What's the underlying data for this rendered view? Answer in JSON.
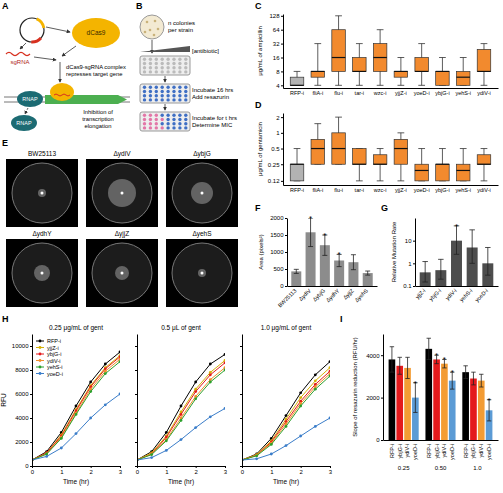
{
  "figure": {
    "panel_letters": [
      "A",
      "B",
      "C",
      "D",
      "E",
      "F",
      "G",
      "H",
      "I"
    ],
    "panel_a": {
      "sgrna": "sgRNA",
      "dcas9": "dCas9",
      "complex": [
        "dCas9-sgRNA complex",
        "represses target gene"
      ],
      "rnap": [
        "RNAP",
        "RNAP"
      ],
      "inhibition": [
        "Inhibition of",
        "transcription",
        "elongation"
      ]
    },
    "panel_b": {
      "colonies": [
        "n colonies",
        "per strain"
      ],
      "antibiotic": "[antibiotic]",
      "step1": [
        "Incubate 16 hrs",
        "Add resazurin"
      ],
      "step2": [
        "Incubate for t hrs",
        "Determine MIC"
      ]
    },
    "panel_e": {
      "strains": [
        "BW25113",
        "ΔydiV",
        "ΔybjG",
        "ΔydhY",
        "ΔyjjZ",
        "ΔyehS"
      ]
    }
  },
  "chart_data": [
    {
      "type": "box",
      "y_label": "μg/mL of ampicillin",
      "categories": [
        "RFP-i",
        "fliA-i",
        "flu-i",
        "tar-i",
        "wzc-i",
        "yjjZ-i",
        "yoeD-i",
        "ybjG-i",
        "yehS-i",
        "ydiV-i"
      ],
      "colors": [
        "#b3b3b3",
        "#f28a2e",
        "#f28a2e",
        "#f28a2e",
        "#f28a2e",
        "#f28a2e",
        "#f28a2e",
        "#f28a2e",
        "#f28a2e",
        "#f28a2e"
      ],
      "min": [
        4,
        4,
        4,
        4,
        4,
        4,
        4,
        4,
        4,
        4
      ],
      "q1": [
        4,
        6,
        8,
        8,
        8,
        6,
        8,
        4,
        4,
        8
      ],
      "median": [
        4,
        8,
        16,
        8,
        16,
        8,
        8,
        8,
        6,
        8
      ],
      "q3": [
        6,
        8,
        64,
        16,
        32,
        8,
        16,
        8,
        8,
        24
      ],
      "max": [
        8,
        32,
        128,
        32,
        64,
        16,
        32,
        16,
        16,
        32
      ],
      "log": "y",
      "ylim": [
        3.5,
        140
      ],
      "yticks": [
        4,
        8,
        16,
        32,
        64,
        128
      ]
    },
    {
      "type": "box",
      "y_label": "μg/mL of gentamicin",
      "categories": [
        "RFP-i",
        "fliA-i",
        "flu-i",
        "tar-i",
        "wzc-i",
        "yjjZ-i",
        "yoeD-i",
        "ybjG-i",
        "yehS-i",
        "ydiV-i"
      ],
      "colors": [
        "#b3b3b3",
        "#f28a2e",
        "#f28a2e",
        "#f28a2e",
        "#f28a2e",
        "#f28a2e",
        "#f28a2e",
        "#f28a2e",
        "#f28a2e",
        "#f28a2e"
      ],
      "min": [
        0.12,
        0.25,
        0.25,
        0.12,
        0.12,
        0.12,
        0.12,
        0.12,
        0.12,
        0.12
      ],
      "q1": [
        0.12,
        0.25,
        0.25,
        0.25,
        0.25,
        0.25,
        0.12,
        0.12,
        0.12,
        0.25
      ],
      "median": [
        0.25,
        0.5,
        0.5,
        0.25,
        0.25,
        0.5,
        0.19,
        0.25,
        0.19,
        0.25
      ],
      "q3": [
        0.25,
        0.75,
        1,
        0.5,
        0.38,
        0.75,
        0.25,
        0.25,
        0.25,
        0.38
      ],
      "max": [
        0.5,
        1.5,
        2,
        0.5,
        0.5,
        1,
        0.5,
        0.5,
        0.5,
        0.5
      ],
      "log": "y",
      "ylim": [
        0.1,
        2.4
      ],
      "yticks": [
        0.12,
        0.25,
        0.5,
        1,
        2
      ]
    },
    {
      "type": "bar",
      "y_label": "Area (pixels²)",
      "categories": [
        "BW25113",
        "ΔydiV",
        "ΔybjG",
        "ΔydhY",
        "ΔyjjZ",
        "ΔyehS"
      ],
      "values": [
        430,
        1580,
        1200,
        750,
        700,
        380
      ],
      "errors": [
        60,
        420,
        300,
        180,
        220,
        60
      ],
      "color": "#8c8c8c",
      "ylim": [
        0,
        2000
      ],
      "yticks": [
        0,
        500,
        1000,
        1500,
        2000
      ],
      "annotations": [
        {
          "category": 1,
          "text": "*"
        },
        {
          "category": 2,
          "text": "*"
        },
        {
          "category": 3,
          "text": "*"
        }
      ]
    },
    {
      "type": "bar",
      "y_label": "Relative Mutation Rate",
      "log": "y",
      "categories": [
        "yjjZ-i",
        "ybjG-i",
        "ydiV-i",
        "yehS-i",
        "yoeD-i"
      ],
      "values": [
        0.4,
        0.5,
        10,
        5,
        1
      ],
      "ci_low": [
        0.15,
        0.2,
        2.5,
        1,
        0.3
      ],
      "ci_high": [
        1.2,
        1.5,
        45,
        30,
        5
      ],
      "color": "#4d4d4d",
      "ylim": [
        0.1,
        100
      ],
      "yticks": [
        0.1,
        1,
        10
      ],
      "annotations": [
        {
          "category": 2,
          "text": "*"
        }
      ]
    },
    {
      "type": "line",
      "title": "0.25 μg/mL of gent",
      "x_label": "Time (hr)",
      "y_label": "RFU",
      "x": [
        0,
        0.5,
        1,
        1.5,
        2,
        2.5,
        3
      ],
      "xlim": [
        0,
        3
      ],
      "xticks": [
        0,
        1,
        2,
        3
      ],
      "ylim": [
        0,
        11000
      ],
      "yticks": [
        0,
        2000,
        4000,
        6000,
        8000,
        10000
      ],
      "legend": "upper left",
      "marker": "circle",
      "series": [
        {
          "name": "RFP-i",
          "color": "#000000",
          "values": [
            500,
            1200,
            2800,
            5000,
            7000,
            8500,
            9500
          ]
        },
        {
          "name": "yjjZ-i",
          "color": "#d4b106",
          "values": [
            500,
            1100,
            2600,
            4700,
            6700,
            8200,
            9200
          ]
        },
        {
          "name": "ybjG-i",
          "color": "#e41a1c",
          "values": [
            500,
            1100,
            2500,
            4600,
            6600,
            8100,
            9100
          ]
        },
        {
          "name": "ydiV-i",
          "color": "#f28e2b",
          "values": [
            500,
            1000,
            2400,
            4400,
            6400,
            7900,
            8900
          ]
        },
        {
          "name": "yehS-i",
          "color": "#2ca02c",
          "values": [
            500,
            1000,
            2300,
            4300,
            6200,
            7700,
            8700
          ]
        },
        {
          "name": "yoeD-i",
          "color": "#3a7dc9",
          "values": [
            500,
            800,
            1500,
            2700,
            4000,
            5100,
            6000
          ]
        }
      ]
    },
    {
      "type": "line",
      "title": "0.5 μL of gent",
      "x_label": "Time (hr)",
      "tick_labels": "x",
      "x": [
        0,
        0.5,
        1,
        1.5,
        2,
        2.5,
        3
      ],
      "xlim": [
        0,
        3
      ],
      "xticks": [
        0,
        1,
        2,
        3
      ],
      "ylim": [
        0,
        11000
      ],
      "yticks": [
        0,
        2000,
        4000,
        6000,
        8000,
        10000
      ],
      "marker": "circle",
      "series": [
        {
          "color": "#000000",
          "values": [
            500,
            1200,
            2800,
            5000,
            7000,
            8500,
            9300
          ]
        },
        {
          "color": "#d4b106",
          "values": [
            500,
            1100,
            2500,
            4500,
            6400,
            7800,
            8800
          ]
        },
        {
          "color": "#e41a1c",
          "values": [
            500,
            1000,
            2400,
            4300,
            6200,
            7600,
            8600
          ]
        },
        {
          "color": "#f28e2b",
          "values": [
            500,
            1000,
            2200,
            4000,
            5800,
            7200,
            8200
          ]
        },
        {
          "color": "#2ca02c",
          "values": [
            500,
            950,
            2100,
            3800,
            5600,
            7000,
            8000
          ]
        },
        {
          "color": "#3a7dc9",
          "values": [
            500,
            700,
            1300,
            2200,
            3200,
            4100,
            4800
          ]
        }
      ]
    },
    {
      "type": "line",
      "title": "1.0 μg/mL of gent",
      "x_label": "Time (hr)",
      "tick_labels": "x",
      "x": [
        0,
        0.5,
        1,
        1.5,
        2,
        2.5,
        3
      ],
      "xlim": [
        0,
        3
      ],
      "xticks": [
        0,
        1,
        2,
        3
      ],
      "ylim": [
        0,
        11000
      ],
      "yticks": [
        0,
        2000,
        4000,
        6000,
        8000,
        10000
      ],
      "marker": "circle",
      "series": [
        {
          "color": "#000000",
          "values": [
            500,
            1000,
            2300,
            4200,
            6100,
            7600,
            8700
          ]
        },
        {
          "color": "#d4b106",
          "values": [
            500,
            950,
            2100,
            3900,
            5700,
            7100,
            8200
          ]
        },
        {
          "color": "#e41a1c",
          "values": [
            500,
            900,
            2000,
            3700,
            5400,
            6800,
            7900
          ]
        },
        {
          "color": "#f28e2b",
          "values": [
            500,
            900,
            1900,
            3500,
            5200,
            6600,
            7700
          ]
        },
        {
          "color": "#2ca02c",
          "values": [
            500,
            850,
            1800,
            3300,
            5000,
            6400,
            7500
          ]
        },
        {
          "color": "#3a7dc9",
          "values": [
            500,
            600,
            1000,
            1700,
            2500,
            3300,
            4000
          ]
        }
      ]
    },
    {
      "type": "bar",
      "y_label": "Slope of resazurin reduction (RFU/hr)",
      "categories": [
        "0.25",
        "0.50",
        "1.0"
      ],
      "series": [
        {
          "name": "RFP-i",
          "color": "#000000",
          "values": [
            3800,
            4300,
            3200
          ],
          "errors": [
            600,
            500,
            300
          ]
        },
        {
          "name": "ybjG-i",
          "color": "#e41a1c",
          "values": [
            3500,
            3800,
            2900
          ],
          "errors": [
            400,
            200,
            300
          ]
        },
        {
          "name": "ydiV-i",
          "color": "#f39c34",
          "values": [
            3400,
            3600,
            2800
          ],
          "errors": [
            500,
            200,
            300
          ]
        },
        {
          "name": "yoeD-i",
          "color": "#5b9bd5",
          "values": [
            2000,
            2800,
            1400
          ],
          "errors": [
            700,
            400,
            500
          ]
        }
      ],
      "ylim": [
        0,
        5000
      ],
      "yticks": [
        0,
        2000,
        4000
      ],
      "annotations": [
        {
          "series": 3,
          "category": 0,
          "text": "*"
        },
        {
          "series": 1,
          "category": 1,
          "text": "*"
        },
        {
          "series": 2,
          "category": 1,
          "text": "*"
        },
        {
          "series": 3,
          "category": 1,
          "text": "*"
        },
        {
          "series": 3,
          "category": 2,
          "text": "*"
        }
      ]
    }
  ]
}
